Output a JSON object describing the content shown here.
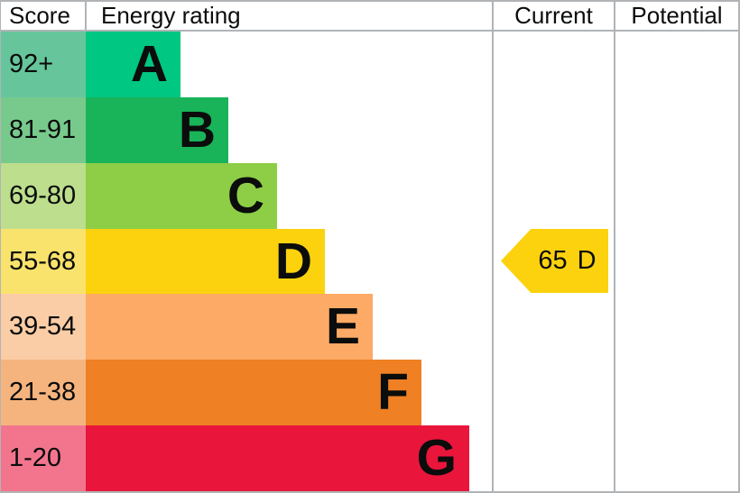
{
  "header": {
    "score": "Score",
    "energy_rating": "Energy rating",
    "current": "Current",
    "potential": "Potential"
  },
  "bands": [
    {
      "range": "92+",
      "letter": "A",
      "bar_color": "#00c781",
      "range_bg": "#66c59b"
    },
    {
      "range": "81-91",
      "letter": "B",
      "bar_color": "#19b459",
      "range_bg": "#77ca8c"
    },
    {
      "range": "69-80",
      "letter": "C",
      "bar_color": "#8dce46",
      "range_bg": "#bcde8d"
    },
    {
      "range": "55-68",
      "letter": "D",
      "bar_color": "#fcd20e",
      "range_bg": "#fae36c"
    },
    {
      "range": "39-54",
      "letter": "E",
      "bar_color": "#fcaa65",
      "range_bg": "#fbcda6"
    },
    {
      "range": "21-38",
      "letter": "F",
      "bar_color": "#ef8023",
      "range_bg": "#f5b47e"
    },
    {
      "range": "1-20",
      "letter": "G",
      "bar_color": "#e9153b",
      "range_bg": "#f2758d"
    }
  ],
  "current_rating": {
    "score": "65",
    "band": "D",
    "band_index": 3,
    "arrow_color": "#fcd20e"
  },
  "colors": {
    "grid_line": "#b1b4b6",
    "text": "#0b0c0c"
  },
  "chart_data": {
    "type": "bar",
    "title": "",
    "categories": [
      "A",
      "B",
      "C",
      "D",
      "E",
      "F",
      "G"
    ],
    "score_ranges": [
      "92+",
      "81-91",
      "69-80",
      "55-68",
      "39-54",
      "21-38",
      "1-20"
    ],
    "columns": [
      "Score",
      "Energy rating",
      "Current",
      "Potential"
    ],
    "band_colors": [
      "#00c781",
      "#19b459",
      "#8dce46",
      "#fcd20e",
      "#fcaa65",
      "#ef8023",
      "#e9153b"
    ],
    "current": {
      "score": 65,
      "band": "D"
    },
    "potential": null,
    "legend_position": "none",
    "grid": false
  }
}
